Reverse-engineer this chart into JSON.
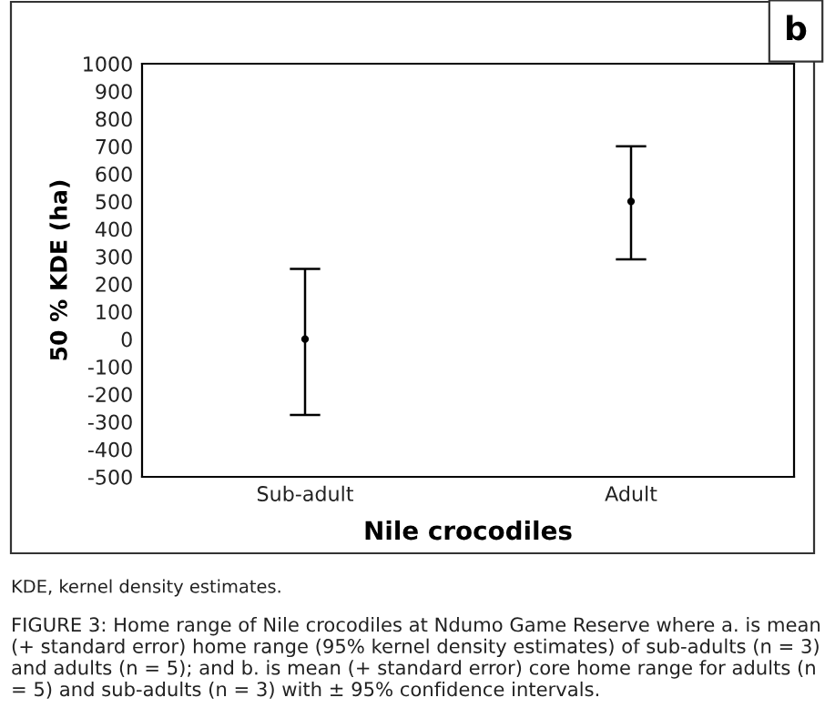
{
  "chart_data": {
    "type": "scatter",
    "xlabel": "Nile crocodiles",
    "ylabel": "50 % KDE (ha)",
    "categories": [
      "Sub-adult",
      "Adult"
    ],
    "series": [
      {
        "color": "#000000",
        "values": [
          0,
          500
        ],
        "errors": [
          [
            -275,
            255
          ],
          [
            290,
            700
          ]
        ]
      }
    ],
    "ylim": [
      -500,
      1000
    ],
    "yticks": [
      -500,
      -400,
      -300,
      -200,
      -100,
      0,
      100,
      200,
      300,
      400,
      500,
      600,
      700,
      800,
      900,
      1000
    ],
    "marker": "circle",
    "grid": false,
    "legend": false,
    "annotations": [
      "b",
      "KDE, kernel density estimates.",
      "FIGURE 3: Home range of Nile crocodiles at Ndumo Game Reserve where a. is mean (+ standard error) home range (95% kernel density estimates) of sub-adults (n = 3) and adults (n = 5); and b. is mean (+ standard error) core home range for adults (n = 5) and sub-adults (n = 3) with ± 95% confidence intervals."
    ]
  }
}
